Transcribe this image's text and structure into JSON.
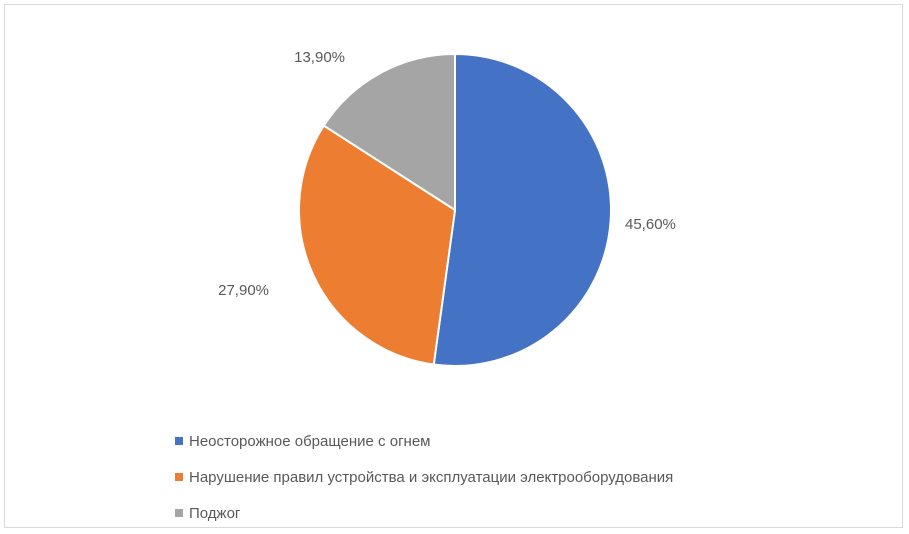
{
  "chart_data": {
    "type": "pie",
    "slices": [
      {
        "name": "Неосторожное обращение с огнем",
        "value": 45.6,
        "label": "45,60%",
        "color": "#4472C4"
      },
      {
        "name": "Нарушение правил устройства и эксплуатации электрооборудования",
        "value": 27.9,
        "label": "27,90%",
        "color": "#ED7D31"
      },
      {
        "name": "Поджог",
        "value": 13.9,
        "label": "13,90%",
        "color": "#A5A5A5"
      }
    ],
    "legend_position": "bottom-left"
  }
}
